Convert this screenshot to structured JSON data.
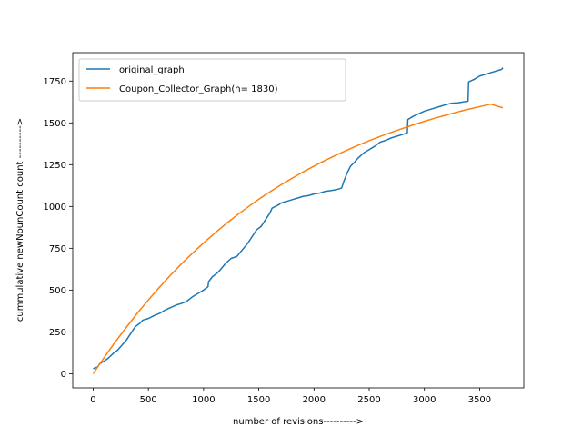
{
  "chart_data": {
    "type": "line",
    "title": "",
    "xlabel": "number of revisions---------->",
    "ylabel": "cummulative newNounCount count ---------->",
    "xlim": [
      -185,
      3900
    ],
    "ylim": [
      -85,
      1920
    ],
    "xticks": [
      0,
      500,
      1000,
      1500,
      2000,
      2500,
      3000,
      3500
    ],
    "yticks": [
      0,
      250,
      500,
      750,
      1000,
      1250,
      1500,
      1750
    ],
    "grid": false,
    "legend_placement": "top-left",
    "series": [
      {
        "name": "original_graph",
        "color": "#1f77b4",
        "x": [
          0,
          40,
          60,
          100,
          140,
          180,
          220,
          260,
          300,
          330,
          350,
          380,
          420,
          450,
          500,
          560,
          600,
          650,
          700,
          750,
          800,
          840,
          900,
          950,
          1000,
          1040,
          1045,
          1080,
          1120,
          1150,
          1200,
          1250,
          1300,
          1350,
          1400,
          1420,
          1450,
          1480,
          1520,
          1560,
          1600,
          1620,
          1650,
          1680,
          1700,
          1720,
          1750,
          1800,
          1850,
          1900,
          1950,
          2000,
          2050,
          2100,
          2150,
          2200,
          2250,
          2270,
          2300,
          2330,
          2360,
          2400,
          2450,
          2500,
          2550,
          2600,
          2650,
          2700,
          2750,
          2800,
          2845,
          2850,
          2900,
          2950,
          3000,
          3050,
          3100,
          3150,
          3200,
          3250,
          3300,
          3350,
          3395,
          3400,
          3450,
          3500,
          3550,
          3600,
          3650,
          3700,
          3710
        ],
        "y": [
          30,
          40,
          60,
          75,
          95,
          120,
          140,
          170,
          200,
          230,
          250,
          280,
          300,
          320,
          330,
          350,
          360,
          380,
          395,
          410,
          420,
          430,
          460,
          480,
          500,
          520,
          550,
          580,
          600,
          620,
          660,
          690,
          700,
          740,
          780,
          800,
          830,
          860,
          880,
          920,
          960,
          990,
          1000,
          1010,
          1020,
          1025,
          1030,
          1040,
          1050,
          1060,
          1065,
          1075,
          1080,
          1090,
          1095,
          1100,
          1110,
          1150,
          1200,
          1240,
          1260,
          1290,
          1320,
          1340,
          1360,
          1385,
          1395,
          1410,
          1420,
          1430,
          1440,
          1520,
          1540,
          1555,
          1570,
          1580,
          1590,
          1600,
          1610,
          1618,
          1620,
          1625,
          1630,
          1745,
          1760,
          1780,
          1790,
          1800,
          1810,
          1820,
          1830
        ]
      },
      {
        "name": "Coupon_Collector_Graph(n= 1830)",
        "color": "#ff7f0e",
        "n": 1830,
        "x": [
          0,
          100,
          200,
          300,
          400,
          500,
          600,
          700,
          800,
          900,
          1000,
          1100,
          1200,
          1300,
          1400,
          1500,
          1600,
          1700,
          1800,
          1900,
          2000,
          2100,
          2200,
          2300,
          2400,
          2500,
          2600,
          2700,
          2800,
          2900,
          3000,
          3100,
          3200,
          3300,
          3400,
          3500,
          3600,
          3710
        ],
        "y": [
          0,
          97,
          190,
          277,
          362,
          441,
          517,
          589,
          657,
          721,
          782,
          840,
          895,
          947,
          996,
          1043,
          1087,
          1129,
          1168,
          1206,
          1241,
          1275,
          1307,
          1337,
          1366,
          1393,
          1419,
          1443,
          1466,
          1488,
          1509,
          1529,
          1547,
          1565,
          1582,
          1597,
          1612,
          1590
        ]
      }
    ]
  }
}
